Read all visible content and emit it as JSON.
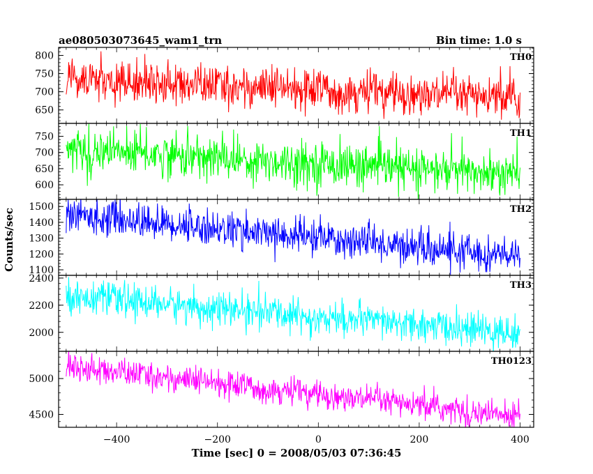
{
  "chart_data": {
    "type": "line",
    "title": "ae080503073645_wam1_trn",
    "bin_time": "Bin time: 1.0 s",
    "xlabel": "Time [sec] 0 = 2008/05/03 07:36:45",
    "ylabel": "Counts/sec",
    "x_range": [
      -500,
      400
    ],
    "xlim": [
      -515,
      427
    ],
    "x_ticks": [
      -400,
      -200,
      0,
      200,
      400
    ],
    "bin": 1.0,
    "grid": false,
    "panels": [
      {
        "label": "TH0",
        "color": "#ff0000",
        "ylim": [
          613,
          822
        ],
        "y_ticks": [
          650,
          700,
          750,
          800
        ],
        "start_mean": 735,
        "end_mean": 680,
        "noise": 28
      },
      {
        "label": "TH1",
        "color": "#00ff00",
        "ylim": [
          555,
          790
        ],
        "y_ticks": [
          600,
          650,
          700,
          750
        ],
        "start_mean": 710,
        "end_mean": 630,
        "noise": 33
      },
      {
        "label": "TH2",
        "color": "#0000ff",
        "ylim": [
          1065,
          1545
        ],
        "y_ticks": [
          1100,
          1200,
          1300,
          1400,
          1500
        ],
        "start_mean": 1450,
        "end_mean": 1180,
        "noise": 55
      },
      {
        "label": "TH3",
        "color": "#00ffff",
        "ylim": [
          1860,
          2420
        ],
        "y_ticks": [
          2000,
          2200,
          2400
        ],
        "start_mean": 2270,
        "end_mean": 1990,
        "noise": 60
      },
      {
        "label": "TH0123",
        "color": "#ff00ff",
        "ylim": [
          4320,
          5380
        ],
        "y_ticks": [
          4500,
          5000
        ],
        "start_mean": 5170,
        "end_mean": 4460,
        "noise": 95
      }
    ]
  }
}
